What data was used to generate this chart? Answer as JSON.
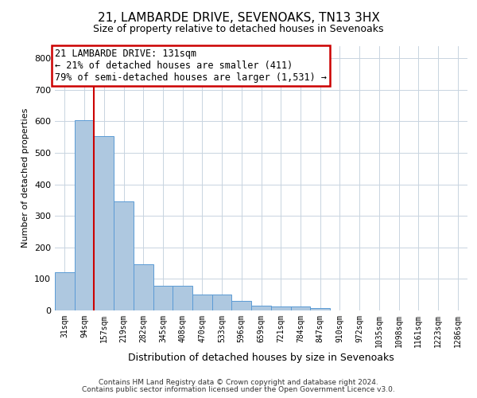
{
  "title1": "21, LAMBARDE DRIVE, SEVENOAKS, TN13 3HX",
  "title2": "Size of property relative to detached houses in Sevenoaks",
  "xlabel": "Distribution of detached houses by size in Sevenoaks",
  "ylabel": "Number of detached properties",
  "bar_values": [
    122,
    603,
    553,
    347,
    147,
    78,
    78,
    50,
    50,
    30,
    15,
    13,
    13,
    7,
    0,
    0,
    0,
    0,
    0,
    0,
    0
  ],
  "bar_labels": [
    "31sqm",
    "94sqm",
    "157sqm",
    "219sqm",
    "282sqm",
    "345sqm",
    "408sqm",
    "470sqm",
    "533sqm",
    "596sqm",
    "659sqm",
    "721sqm",
    "784sqm",
    "847sqm",
    "910sqm",
    "972sqm",
    "1035sqm",
    "1098sqm",
    "1161sqm",
    "1223sqm",
    "1286sqm"
  ],
  "bar_color": "#aec8e0",
  "bar_edge_color": "#5b9bd5",
  "vline_x": 1.5,
  "annotation_line1": "21 LAMBARDE DRIVE: 131sqm",
  "annotation_line2": "← 21% of detached houses are smaller (411)",
  "annotation_line3": "79% of semi-detached houses are larger (1,531) →",
  "annotation_box_facecolor": "#ffffff",
  "annotation_box_edgecolor": "#cc0000",
  "ylim": [
    0,
    840
  ],
  "yticks": [
    0,
    100,
    200,
    300,
    400,
    500,
    600,
    700,
    800
  ],
  "footer1": "Contains HM Land Registry data © Crown copyright and database right 2024.",
  "footer2": "Contains public sector information licensed under the Open Government Licence v3.0.",
  "bg_color": "#ffffff",
  "grid_color": "#c8d4e0",
  "vline_color": "#cc0000",
  "title1_fontsize": 11,
  "title2_fontsize": 9,
  "annotation_fontsize": 8.5,
  "xlabel_fontsize": 9,
  "ylabel_fontsize": 8,
  "tick_fontsize": 8,
  "footer_fontsize": 6.5
}
